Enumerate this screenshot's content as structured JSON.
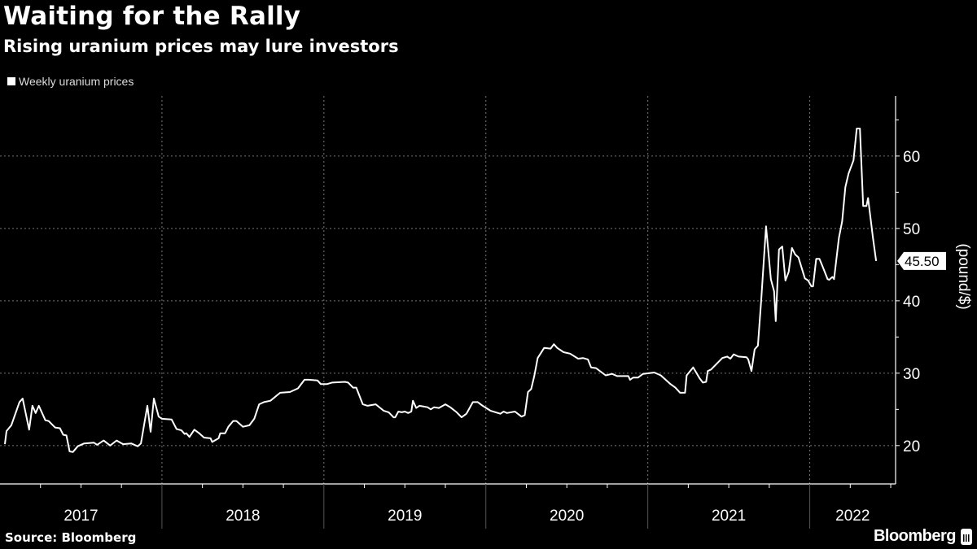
{
  "header": {
    "title": "Waiting for the Rally",
    "subtitle": "Rising uranium prices may lure investors"
  },
  "footer": {
    "source": "Source: Bloomberg",
    "logo": "Bloomberg"
  },
  "colors": {
    "background": "#000000",
    "line": "#ffffff",
    "grid": "#666666"
  },
  "chart_data": {
    "type": "line",
    "title": "Waiting for the Rally",
    "subtitle": "Rising uranium prices may lure investors",
    "xlabel": "",
    "ylabel": "(pound/$)",
    "legend": {
      "position": "top-left",
      "entries": [
        "Weekly uranium prices"
      ]
    },
    "x_tick_labels": [
      "2017",
      "2018",
      "2019",
      "2020",
      "2021",
      "2022"
    ],
    "y_ticks": [
      20,
      30,
      40,
      50,
      60
    ],
    "y_tick_labels": [
      "20",
      "30",
      "40",
      "50",
      "60"
    ],
    "ylim": [
      14.7,
      68.3
    ],
    "xlim": [
      2017.0,
      2022.53
    ],
    "grid": true,
    "last_value_label": "45.50",
    "series": [
      {
        "name": "Weekly uranium prices",
        "x": [
          2017.03,
          2017.04,
          2017.07,
          2017.12,
          2017.14,
          2017.18,
          2017.2,
          2017.22,
          2017.24,
          2017.28,
          2017.3,
          2017.34,
          2017.37,
          2017.39,
          2017.41,
          2017.43,
          2017.45,
          2017.48,
          2017.52,
          2017.58,
          2017.6,
          2017.64,
          2017.68,
          2017.72,
          2017.76,
          2017.81,
          2017.85,
          2017.87,
          2017.91,
          2017.93,
          2017.95,
          2017.98,
          2018.0,
          2018.06,
          2018.09,
          2018.12,
          2018.14,
          2018.15,
          2018.17,
          2018.2,
          2018.23,
          2018.26,
          2018.3,
          2018.31,
          2018.35,
          2018.36,
          2018.39,
          2018.41,
          2018.44,
          2018.46,
          2018.5,
          2018.54,
          2018.57,
          2018.6,
          2018.63,
          2018.67,
          2018.73,
          2018.79,
          2018.84,
          2018.88,
          2018.91,
          2018.96,
          2018.98,
          2019.02,
          2019.05,
          2019.13,
          2019.15,
          2019.18,
          2019.2,
          2019.24,
          2019.27,
          2019.32,
          2019.37,
          2019.4,
          2019.43,
          2019.44,
          2019.46,
          2019.48,
          2019.5,
          2019.52,
          2019.54,
          2019.55,
          2019.57,
          2019.59,
          2019.64,
          2019.66,
          2019.68,
          2019.71,
          2019.75,
          2019.78,
          2019.82,
          2019.85,
          2019.88,
          2019.92,
          2019.95,
          2019.98,
          2020.03,
          2020.09,
          2020.11,
          2020.13,
          2020.18,
          2020.22,
          2020.24,
          2020.26,
          2020.28,
          2020.3,
          2020.32,
          2020.36,
          2020.4,
          2020.42,
          2020.44,
          2020.48,
          2020.52,
          2020.57,
          2020.6,
          2020.63,
          2020.65,
          2020.68,
          2020.74,
          2020.78,
          2020.81,
          2020.88,
          2020.89,
          2020.91,
          2020.94,
          2020.97,
          2021.04,
          2021.08,
          2021.14,
          2021.17,
          2021.2,
          2021.23,
          2021.24,
          2021.28,
          2021.32,
          2021.34,
          2021.36,
          2021.37,
          2021.39,
          2021.46,
          2021.49,
          2021.51,
          2021.53,
          2021.56,
          2021.61,
          2021.62,
          2021.64,
          2021.66,
          2021.68,
          2021.7,
          2021.73,
          2021.76,
          2021.78,
          2021.79,
          2021.81,
          2021.83,
          2021.85,
          2021.87,
          2021.89,
          2021.91,
          2021.93,
          2021.94,
          2021.97,
          2021.99,
          2022.01,
          2022.02,
          2022.04,
          2022.06,
          2022.08,
          2022.11,
          2022.12,
          2022.14,
          2022.15,
          2022.18,
          2022.2,
          2022.22,
          2022.24,
          2022.27,
          2022.29,
          2022.31,
          2022.33,
          2022.35,
          2022.36,
          2022.39,
          2022.41
        ],
        "y": [
          20.2,
          22,
          22.8,
          26,
          26.5,
          22.2,
          25.5,
          24.5,
          25.5,
          23.5,
          23.4,
          22.5,
          22.4,
          21.5,
          21.4,
          19.2,
          19.1,
          19.9,
          20.3,
          20.4,
          20.1,
          20.7,
          20,
          20.7,
          20.2,
          20.3,
          19.9,
          20.3,
          25.5,
          21.9,
          26.5,
          24,
          23.7,
          23.6,
          22.3,
          22.1,
          21.6,
          21.7,
          21.2,
          22.2,
          21.7,
          21.1,
          21,
          20.5,
          21,
          21.7,
          21.7,
          22.6,
          23.4,
          23.4,
          22.6,
          22.8,
          23.7,
          25.7,
          26,
          26.2,
          27.3,
          27.4,
          27.9,
          29.1,
          29.1,
          29,
          28.5,
          28.5,
          28.7,
          28.8,
          28.7,
          28,
          28,
          25.7,
          25.5,
          25.7,
          24.8,
          24.6,
          23.9,
          23.9,
          24.7,
          24.6,
          24.7,
          24.5,
          24.7,
          26.2,
          25.2,
          25.5,
          25.3,
          25,
          25.3,
          25.2,
          25.7,
          25.3,
          24.6,
          23.9,
          24.4,
          26,
          26,
          25.5,
          24.8,
          24.4,
          24.7,
          24.5,
          24.7,
          24,
          24.2,
          27.4,
          27.8,
          29.7,
          32.1,
          33.5,
          33.4,
          34,
          33.5,
          32.9,
          32.7,
          32,
          32.1,
          31.9,
          30.8,
          30.7,
          29.7,
          29.9,
          29.6,
          29.6,
          29.1,
          29.4,
          29.4,
          29.9,
          30.1,
          29.7,
          28.5,
          28,
          27.3,
          27.3,
          29.7,
          30.8,
          29.3,
          28.7,
          28.8,
          30.3,
          30.5,
          32.1,
          32.3,
          32,
          32.6,
          32.3,
          32.2,
          31.9,
          30.3,
          33.3,
          33.8,
          40,
          50.3,
          43,
          41.3,
          37.2,
          47.1,
          47.5,
          42.8,
          44,
          47.3,
          46.4,
          46,
          45.3,
          43.1,
          42.8,
          42,
          42,
          45.8,
          45.8,
          44.7,
          43,
          42.9,
          43.3,
          43,
          48.7,
          51,
          55.7,
          57.6,
          59.4,
          63.8,
          63.8,
          53.1,
          53.1,
          54.2,
          48.7,
          45.5
        ]
      }
    ]
  }
}
